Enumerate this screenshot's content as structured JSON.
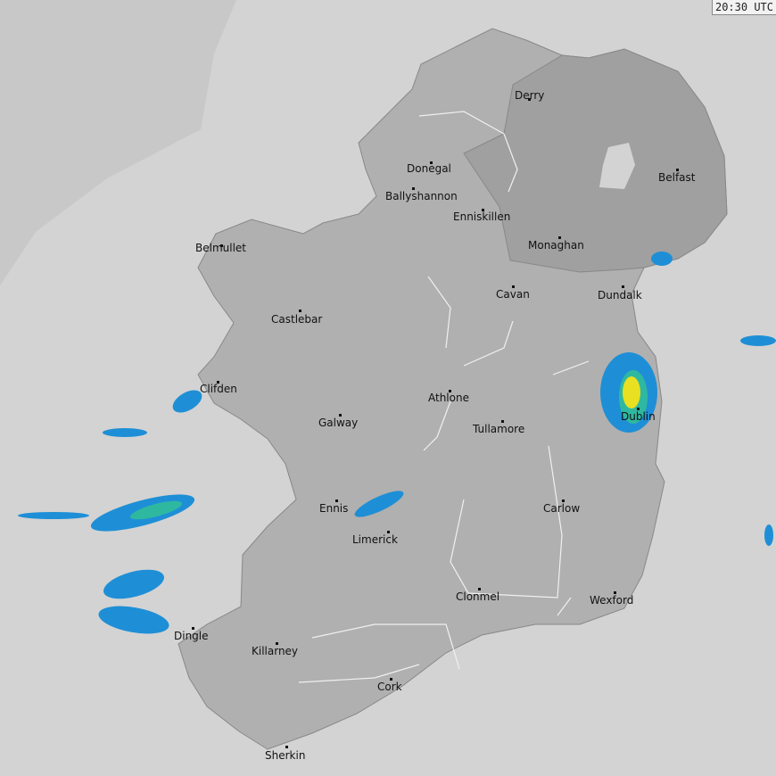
{
  "timestamp": "20:30 UTC",
  "colors": {
    "sea": "#d3d3d3",
    "out_of_range": "#c8c8c8",
    "republic": "#b0b0b0",
    "northern_ireland": "#a0a0a0",
    "rain_light": "#1e8fd6",
    "rain_moderate": "#2fb8a0",
    "rain_heavy": "#e8e020"
  },
  "cities": [
    {
      "name": "Derry"
    },
    {
      "name": "Donegal"
    },
    {
      "name": "Ballyshannon"
    },
    {
      "name": "Enniskillen"
    },
    {
      "name": "Belfast"
    },
    {
      "name": "Monaghan"
    },
    {
      "name": "Belmullet"
    },
    {
      "name": "Dundalk"
    },
    {
      "name": "Cavan"
    },
    {
      "name": "Castlebar"
    },
    {
      "name": "Clifden"
    },
    {
      "name": "Athlone"
    },
    {
      "name": "Galway"
    },
    {
      "name": "Dublin"
    },
    {
      "name": "Tullamore"
    },
    {
      "name": "Ennis"
    },
    {
      "name": "Carlow"
    },
    {
      "name": "Limerick"
    },
    {
      "name": "Clonmel"
    },
    {
      "name": "Wexford"
    },
    {
      "name": "Dingle"
    },
    {
      "name": "Killarney"
    },
    {
      "name": "Cork"
    },
    {
      "name": "Sherkin"
    }
  ]
}
